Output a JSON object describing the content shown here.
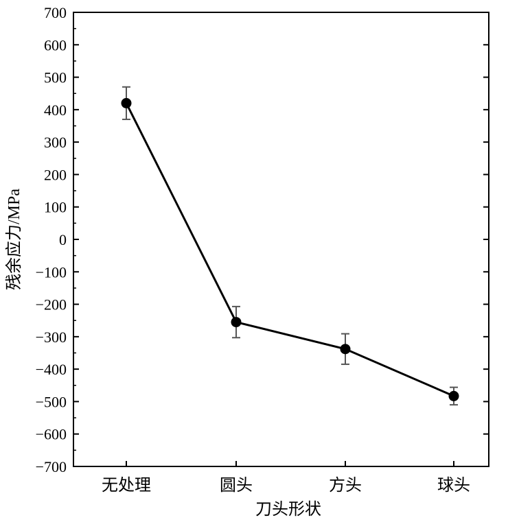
{
  "chart_data": {
    "type": "line",
    "xlabel": "刀头形状",
    "ylabel": "残余应力/MPa",
    "categories": [
      "无处理",
      "圆头",
      "方头",
      "球头"
    ],
    "values": [
      420,
      -255,
      -338,
      -483
    ],
    "errors": [
      50,
      48,
      47,
      27
    ],
    "ylim": [
      -700,
      700
    ],
    "yticks": [
      700,
      600,
      500,
      400,
      300,
      200,
      100,
      0,
      -100,
      -200,
      -300,
      -400,
      -500,
      -600,
      -700
    ],
    "ytick_labels": [
      "700",
      "600",
      "500",
      "400",
      "300",
      "200",
      "100",
      "0",
      "−100",
      "−200",
      "−300",
      "−400",
      "−500",
      "−600",
      "−700"
    ],
    "grid": false,
    "line_color": "#000000",
    "errorbar_color": "#555555"
  }
}
